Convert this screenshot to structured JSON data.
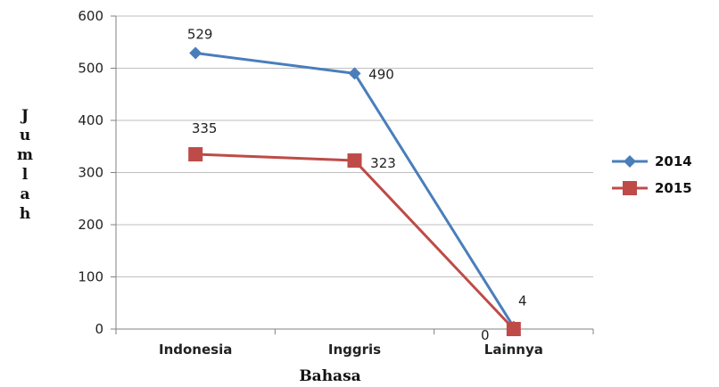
{
  "chart_data": {
    "type": "line",
    "title": "",
    "xlabel": "Bahasa",
    "ylabel": "Jumlah",
    "categories": [
      "Indonesia",
      "Inggris",
      "Lainnya"
    ],
    "ylim": [
      0,
      600
    ],
    "yticks": [
      "0",
      "100",
      "200",
      "300",
      "400",
      "500",
      "600"
    ],
    "grid": true,
    "legend": "right",
    "series": [
      {
        "name": "2014",
        "values": [
          529,
          490,
          4
        ],
        "labels": [
          "529",
          "490",
          "4"
        ],
        "color": "#4a7ebb",
        "marker": "diamond"
      },
      {
        "name": "2015",
        "values": [
          335,
          323,
          0
        ],
        "labels": [
          "335",
          "323",
          "0"
        ],
        "color": "#be4b48",
        "marker": "square"
      }
    ]
  }
}
